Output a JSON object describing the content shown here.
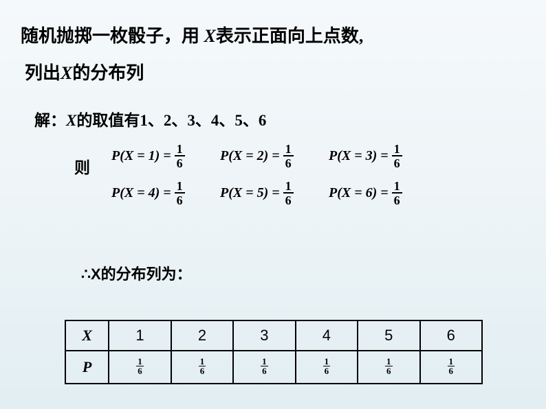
{
  "problem": {
    "line1_a": "随机抛掷一枚骰子，用 ",
    "line1_x": "X",
    "line1_b": "表示正面向上点数,",
    "line2_a": "列出",
    "line2_x": "X",
    "line2_b": "的分布列"
  },
  "solution": {
    "prefix": "解：",
    "xi": "X",
    "middle": "的取值有1、2、3、4、5、6",
    "ze": "则"
  },
  "equations": {
    "p1": "P(X = 1) =",
    "p2": "P(X = 2) =",
    "p3": "P(X = 3) =",
    "p4": "P(X = 4) =",
    "p5": "P(X = 5) =",
    "p6": "P(X = 6) =",
    "num": "1",
    "den": "6"
  },
  "conclusion": {
    "therefore": "∴",
    "text": "X的分布列为："
  },
  "table": {
    "row_x": "X",
    "row_p": "P",
    "x_vals": [
      "1",
      "2",
      "3",
      "4",
      "5",
      "6"
    ],
    "p_num": "1",
    "p_den": "6"
  }
}
